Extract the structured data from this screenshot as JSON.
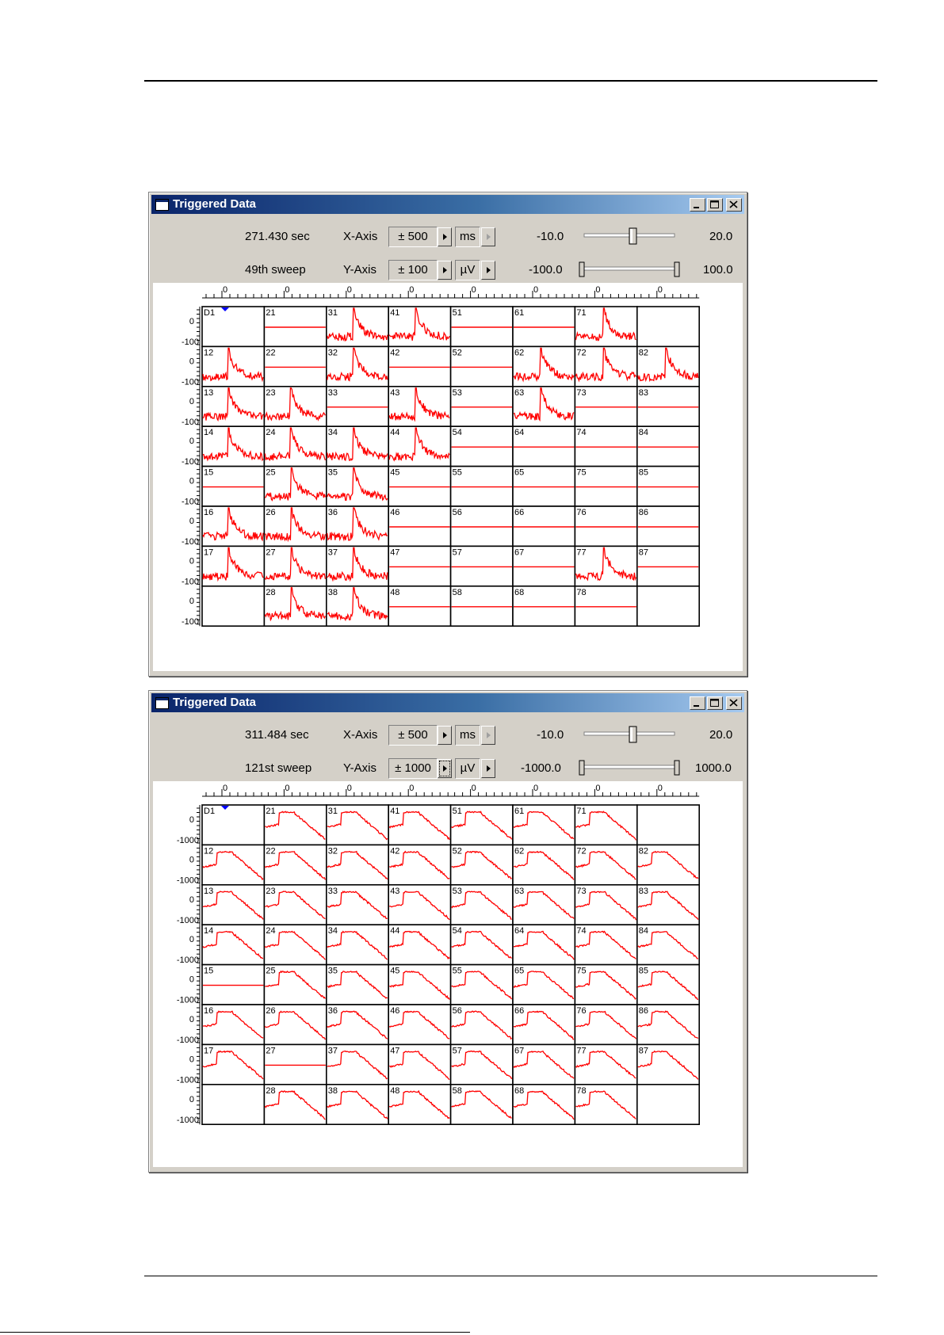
{
  "colors": {
    "trace": "#ff0000",
    "titlebar_start": "#0a246a",
    "marker": "#0000ff",
    "frame": "#d4d0c8"
  },
  "windows": [
    {
      "title": "Triggered Data",
      "time": "271.430 sec",
      "sweep": "49th sweep",
      "x_axis": {
        "label": "X-Axis",
        "range": "± 500",
        "unit": "ms",
        "slider_min": "-10.0",
        "slider_max": "20.0",
        "slider_pos": 0.55
      },
      "y_axis": {
        "label": "Y-Axis",
        "range": "± 100",
        "unit": "µV",
        "slider_min": "-100.0",
        "slider_max": "100.0"
      },
      "top_tick_label": "0",
      "row_labels": [
        "0",
        "-100"
      ],
      "marker_label": "D1",
      "grid": [
        [
          {
            "n": "D1",
            "t": "none"
          },
          {
            "n": "21",
            "t": "flat"
          },
          {
            "n": "31",
            "t": "spike"
          },
          {
            "n": "41",
            "t": "spike"
          },
          {
            "n": "51",
            "t": "flat"
          },
          {
            "n": "61",
            "t": "flat"
          },
          {
            "n": "71",
            "t": "spike"
          },
          {
            "n": "",
            "t": "none"
          }
        ],
        [
          {
            "n": "12",
            "t": "spike"
          },
          {
            "n": "22",
            "t": "flat"
          },
          {
            "n": "32",
            "t": "spike"
          },
          {
            "n": "42",
            "t": "flat"
          },
          {
            "n": "52",
            "t": "flat"
          },
          {
            "n": "62",
            "t": "spike"
          },
          {
            "n": "72",
            "t": "spike"
          },
          {
            "n": "82",
            "t": "spike"
          }
        ],
        [
          {
            "n": "13",
            "t": "spike"
          },
          {
            "n": "23",
            "t": "spike"
          },
          {
            "n": "33",
            "t": "flat"
          },
          {
            "n": "43",
            "t": "spike"
          },
          {
            "n": "53",
            "t": "flat"
          },
          {
            "n": "63",
            "t": "spike"
          },
          {
            "n": "73",
            "t": "flat"
          },
          {
            "n": "83",
            "t": "flat"
          }
        ],
        [
          {
            "n": "14",
            "t": "spike"
          },
          {
            "n": "24",
            "t": "spike"
          },
          {
            "n": "34",
            "t": "spike"
          },
          {
            "n": "44",
            "t": "spike"
          },
          {
            "n": "54",
            "t": "flat"
          },
          {
            "n": "64",
            "t": "flat"
          },
          {
            "n": "74",
            "t": "flat"
          },
          {
            "n": "84",
            "t": "flat"
          }
        ],
        [
          {
            "n": "15",
            "t": "flat"
          },
          {
            "n": "25",
            "t": "spike"
          },
          {
            "n": "35",
            "t": "spike"
          },
          {
            "n": "45",
            "t": "flat"
          },
          {
            "n": "55",
            "t": "flat"
          },
          {
            "n": "65",
            "t": "flat"
          },
          {
            "n": "75",
            "t": "flat"
          },
          {
            "n": "85",
            "t": "flat"
          }
        ],
        [
          {
            "n": "16",
            "t": "spike"
          },
          {
            "n": "26",
            "t": "spike"
          },
          {
            "n": "36",
            "t": "spike"
          },
          {
            "n": "46",
            "t": "flat"
          },
          {
            "n": "56",
            "t": "flat"
          },
          {
            "n": "66",
            "t": "flat"
          },
          {
            "n": "76",
            "t": "flat"
          },
          {
            "n": "86",
            "t": "flat"
          }
        ],
        [
          {
            "n": "17",
            "t": "spike"
          },
          {
            "n": "27",
            "t": "spike"
          },
          {
            "n": "37",
            "t": "spike"
          },
          {
            "n": "47",
            "t": "flat"
          },
          {
            "n": "57",
            "t": "flat"
          },
          {
            "n": "67",
            "t": "flat"
          },
          {
            "n": "77",
            "t": "spike"
          },
          {
            "n": "87",
            "t": "flat"
          }
        ],
        [
          {
            "n": "",
            "t": "none"
          },
          {
            "n": "28",
            "t": "spike"
          },
          {
            "n": "38",
            "t": "spike"
          },
          {
            "n": "48",
            "t": "flat"
          },
          {
            "n": "58",
            "t": "flat"
          },
          {
            "n": "68",
            "t": "flat"
          },
          {
            "n": "78",
            "t": "flat"
          },
          {
            "n": "",
            "t": "none"
          }
        ]
      ]
    },
    {
      "title": "Triggered Data",
      "time": "311.484 sec",
      "sweep": "121st sweep",
      "x_axis": {
        "label": "X-Axis",
        "range": "± 500",
        "unit": "ms",
        "slider_min": "-10.0",
        "slider_max": "20.0",
        "slider_pos": 0.55
      },
      "y_axis": {
        "label": "Y-Axis",
        "range": "± 1000",
        "unit": "µV",
        "slider_min": "-1000.0",
        "slider_max": "1000.0"
      },
      "top_tick_label": "0",
      "row_labels": [
        "0",
        "-1000"
      ],
      "marker_label": "D1",
      "grid": [
        [
          {
            "n": "D1",
            "t": "none"
          },
          {
            "n": "21",
            "t": "pulse"
          },
          {
            "n": "31",
            "t": "pulse"
          },
          {
            "n": "41",
            "t": "pulse"
          },
          {
            "n": "51",
            "t": "pulse"
          },
          {
            "n": "61",
            "t": "pulse"
          },
          {
            "n": "71",
            "t": "pulse"
          },
          {
            "n": "",
            "t": "none"
          }
        ],
        [
          {
            "n": "12",
            "t": "pulse"
          },
          {
            "n": "22",
            "t": "pulse"
          },
          {
            "n": "32",
            "t": "pulse"
          },
          {
            "n": "42",
            "t": "pulse"
          },
          {
            "n": "52",
            "t": "pulse"
          },
          {
            "n": "62",
            "t": "pulse"
          },
          {
            "n": "72",
            "t": "pulse"
          },
          {
            "n": "82",
            "t": "pulse"
          }
        ],
        [
          {
            "n": "13",
            "t": "pulse"
          },
          {
            "n": "23",
            "t": "pulse"
          },
          {
            "n": "33",
            "t": "pulse"
          },
          {
            "n": "43",
            "t": "pulse"
          },
          {
            "n": "53",
            "t": "pulse"
          },
          {
            "n": "63",
            "t": "pulse"
          },
          {
            "n": "73",
            "t": "pulse"
          },
          {
            "n": "83",
            "t": "pulse"
          }
        ],
        [
          {
            "n": "14",
            "t": "pulse"
          },
          {
            "n": "24",
            "t": "pulse"
          },
          {
            "n": "34",
            "t": "pulse"
          },
          {
            "n": "44",
            "t": "pulse"
          },
          {
            "n": "54",
            "t": "pulse"
          },
          {
            "n": "64",
            "t": "pulse"
          },
          {
            "n": "74",
            "t": "pulse"
          },
          {
            "n": "84",
            "t": "pulse"
          }
        ],
        [
          {
            "n": "15",
            "t": "flat"
          },
          {
            "n": "25",
            "t": "pulse"
          },
          {
            "n": "35",
            "t": "pulse"
          },
          {
            "n": "45",
            "t": "pulse"
          },
          {
            "n": "55",
            "t": "pulse"
          },
          {
            "n": "65",
            "t": "pulse"
          },
          {
            "n": "75",
            "t": "pulse"
          },
          {
            "n": "85",
            "t": "pulse"
          }
        ],
        [
          {
            "n": "16",
            "t": "pulse"
          },
          {
            "n": "26",
            "t": "pulse"
          },
          {
            "n": "36",
            "t": "pulse"
          },
          {
            "n": "46",
            "t": "pulse"
          },
          {
            "n": "56",
            "t": "pulse"
          },
          {
            "n": "66",
            "t": "pulse"
          },
          {
            "n": "76",
            "t": "pulse"
          },
          {
            "n": "86",
            "t": "pulse"
          }
        ],
        [
          {
            "n": "17",
            "t": "pulse"
          },
          {
            "n": "27",
            "t": "flat"
          },
          {
            "n": "37",
            "t": "pulse"
          },
          {
            "n": "47",
            "t": "pulse"
          },
          {
            "n": "57",
            "t": "pulse"
          },
          {
            "n": "67",
            "t": "pulse"
          },
          {
            "n": "77",
            "t": "pulse"
          },
          {
            "n": "87",
            "t": "pulse"
          }
        ],
        [
          {
            "n": "",
            "t": "none"
          },
          {
            "n": "28",
            "t": "pulse"
          },
          {
            "n": "38",
            "t": "pulse"
          },
          {
            "n": "48",
            "t": "pulse"
          },
          {
            "n": "58",
            "t": "pulse"
          },
          {
            "n": "68",
            "t": "pulse"
          },
          {
            "n": "78",
            "t": "pulse"
          },
          {
            "n": "",
            "t": "none"
          }
        ]
      ]
    }
  ]
}
